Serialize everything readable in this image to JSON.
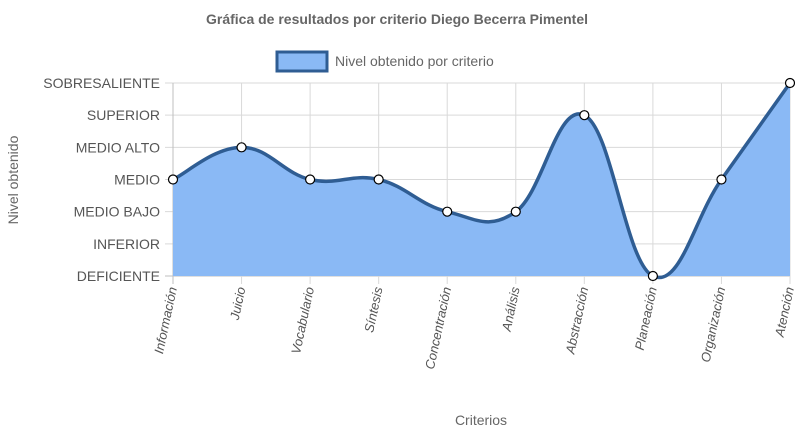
{
  "chart_data": {
    "type": "area",
    "title": "Gráfica de resultados por criterio Diego Becerra Pimentel",
    "xlabel": "Criterios",
    "ylabel": "Nivel obtenido",
    "categories": [
      "Información",
      "Juicio",
      "Vocabulario",
      "Síntesis",
      "Concentración",
      "Análisis",
      "Abstracción",
      "Planeación",
      "Organización",
      "Atención"
    ],
    "y_levels": [
      "DEFICIENTE",
      "INFERIOR",
      "MEDIO BAJO",
      "MEDIO",
      "MEDIO ALTO",
      "SUPERIOR",
      "SOBRESALIENTE"
    ],
    "series": [
      {
        "name": "Nivel obtenido por criterio",
        "values": [
          3,
          4,
          3,
          3,
          2,
          2,
          5,
          0,
          3,
          6
        ],
        "value_labels": [
          "MEDIO",
          "MEDIO ALTO",
          "MEDIO",
          "MEDIO",
          "MEDIO BAJO",
          "MEDIO BAJO",
          "SUPERIOR",
          "DEFICIENTE",
          "MEDIO",
          "SOBRESALIENTE"
        ]
      }
    ],
    "ylim": [
      0,
      6
    ],
    "grid": true,
    "legend_position": "top",
    "colors": {
      "fill": "#8ab9f5",
      "stroke": "#2f5d93",
      "point_fill": "#ffffff",
      "point_stroke": "#000000",
      "grid": "#d9d9d9",
      "axis_title": "#666666"
    }
  }
}
